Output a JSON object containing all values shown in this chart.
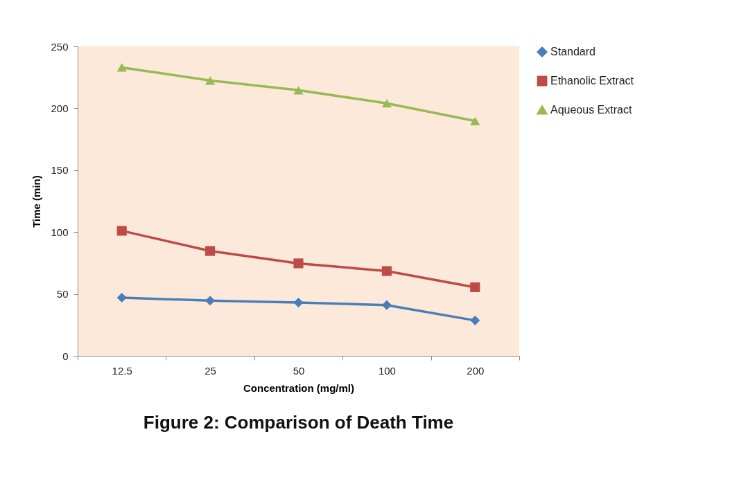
{
  "chart_data": {
    "type": "line",
    "title": "Figure 2: Comparison of Death Time",
    "xlabel": "Concentration (mg/ml)",
    "ylabel": "Time (min)",
    "categories": [
      "12.5",
      "25",
      "50",
      "100",
      "200"
    ],
    "series": [
      {
        "name": "Standard",
        "color": "#4a7ebb",
        "marker": "diamond",
        "values": [
          47,
          44.6,
          43,
          41,
          28.6
        ]
      },
      {
        "name": "Ethanolic Extract",
        "color": "#be4b48",
        "marker": "square",
        "values": [
          101,
          84.7,
          74.7,
          68.5,
          55.4
        ]
      },
      {
        "name": "Aqueous Extract",
        "color": "#98b954",
        "marker": "triangle",
        "values": [
          233,
          222.4,
          214.6,
          204,
          189.7
        ]
      }
    ],
    "ylim": [
      0,
      250
    ],
    "yticks": [
      0,
      50,
      100,
      150,
      200,
      250
    ],
    "grid": false,
    "legend": "right",
    "line_style": "solid"
  }
}
